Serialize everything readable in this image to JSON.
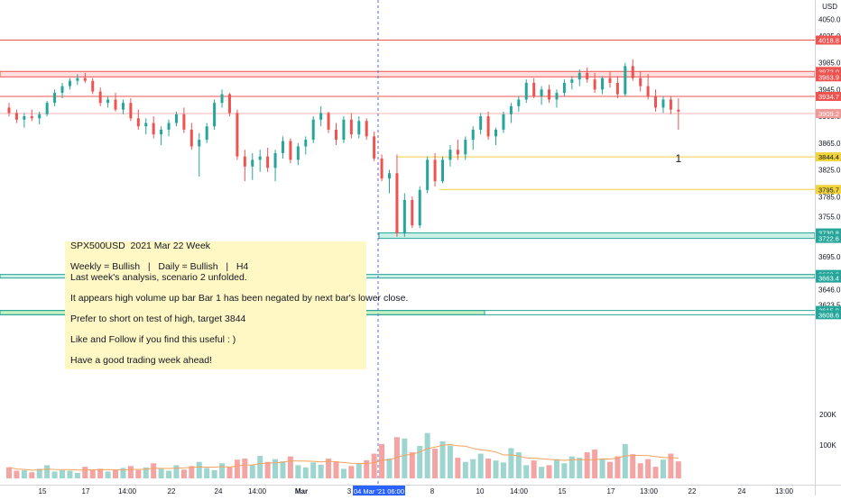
{
  "chart_data": {
    "type": "candlestick",
    "symbol_title": "SPX500USD  2021 Mar 22 Week",
    "currency_label": "USD",
    "colors": {
      "up": "#26a69a",
      "down": "#ef5350",
      "vol_up": "#9ed6cf",
      "vol_down": "#f4a5a3",
      "resistance": "#ef5350",
      "fib": "#f0d43a",
      "support": "#26a69a",
      "ma": "#f5a25d"
    },
    "y_ticks": [
      "4050.0",
      "4025.0",
      "3985.0",
      "3945.0",
      "3905.0",
      "3865.0",
      "3825.0",
      "3785.0",
      "3755.0",
      "3725.0",
      "3695.0",
      "3646.0",
      "3623.5"
    ],
    "x_ticks": [
      "15",
      "17",
      "14:00",
      "22",
      "24",
      "14:00",
      "Mar",
      "3",
      "8",
      "10",
      "14:00",
      "15",
      "17",
      "13:00",
      "22",
      "24",
      "13:00"
    ],
    "cursor_label": "04 Mar '21    06:00",
    "volume_ticks": [
      "200K",
      "100K"
    ],
    "price_levels": [
      {
        "label": "4018.8",
        "kind": "resistance"
      },
      {
        "label": "3972.0",
        "kind": "resistance"
      },
      {
        "label": "3963.9",
        "kind": "resistance"
      },
      {
        "label": "3934.7",
        "kind": "resistance"
      },
      {
        "label": "3909.2",
        "kind": "last"
      },
      {
        "label": "3844.4",
        "kind": "fib"
      },
      {
        "label": "3795.7",
        "kind": "fib"
      },
      {
        "label": "3730.8",
        "kind": "support"
      },
      {
        "label": "3722.6",
        "kind": "support"
      },
      {
        "label": "3668.8",
        "kind": "support"
      },
      {
        "label": "3663.4",
        "kind": "support"
      },
      {
        "label": "3615.0",
        "kind": "support"
      },
      {
        "label": "3608.6",
        "kind": "support"
      }
    ],
    "bar_annotation": "1",
    "candles": [
      [
        3918,
        3925,
        3905,
        3910
      ],
      [
        3910,
        3915,
        3895,
        3900
      ],
      [
        3900,
        3910,
        3888,
        3905
      ],
      [
        3905,
        3915,
        3898,
        3902
      ],
      [
        3902,
        3912,
        3893,
        3908
      ],
      [
        3908,
        3928,
        3905,
        3925
      ],
      [
        3925,
        3945,
        3920,
        3940
      ],
      [
        3940,
        3955,
        3932,
        3950
      ],
      [
        3950,
        3962,
        3945,
        3958
      ],
      [
        3958,
        3968,
        3952,
        3962
      ],
      [
        3962,
        3970,
        3955,
        3958
      ],
      [
        3958,
        3962,
        3938,
        3942
      ],
      [
        3942,
        3948,
        3920,
        3925
      ],
      [
        3925,
        3935,
        3918,
        3930
      ],
      [
        3930,
        3940,
        3912,
        3915
      ],
      [
        3915,
        3930,
        3908,
        3925
      ],
      [
        3925,
        3932,
        3898,
        3902
      ],
      [
        3902,
        3915,
        3885,
        3890
      ],
      [
        3890,
        3902,
        3878,
        3895
      ],
      [
        3895,
        3905,
        3872,
        3878
      ],
      [
        3878,
        3890,
        3862,
        3885
      ],
      [
        3885,
        3900,
        3875,
        3895
      ],
      [
        3895,
        3912,
        3890,
        3908
      ],
      [
        3908,
        3918,
        3880,
        3885
      ],
      [
        3885,
        3895,
        3855,
        3860
      ],
      [
        3860,
        3880,
        3815,
        3870
      ],
      [
        3870,
        3895,
        3865,
        3890
      ],
      [
        3890,
        3930,
        3885,
        3925
      ],
      [
        3925,
        3945,
        3918,
        3938
      ],
      [
        3938,
        3940,
        3905,
        3910
      ],
      [
        3910,
        3915,
        3840,
        3845
      ],
      [
        3845,
        3855,
        3808,
        3830
      ],
      [
        3830,
        3850,
        3810,
        3840
      ],
      [
        3840,
        3855,
        3822,
        3845
      ],
      [
        3845,
        3858,
        3822,
        3828
      ],
      [
        3828,
        3855,
        3808,
        3850
      ],
      [
        3850,
        3875,
        3842,
        3868
      ],
      [
        3868,
        3872,
        3835,
        3840
      ],
      [
        3840,
        3865,
        3832,
        3860
      ],
      [
        3860,
        3875,
        3848,
        3870
      ],
      [
        3870,
        3905,
        3865,
        3900
      ],
      [
        3900,
        3920,
        3890,
        3910
      ],
      [
        3910,
        3912,
        3880,
        3885
      ],
      [
        3885,
        3895,
        3862,
        3870
      ],
      [
        3870,
        3905,
        3865,
        3900
      ],
      [
        3900,
        3910,
        3872,
        3878
      ],
      [
        3878,
        3905,
        3872,
        3898
      ],
      [
        3898,
        3902,
        3870,
        3875
      ],
      [
        3875,
        3882,
        3838,
        3842
      ],
      [
        3842,
        3848,
        3808,
        3812
      ],
      [
        3812,
        3825,
        3790,
        3820
      ],
      [
        3820,
        3848,
        3725,
        3730
      ],
      [
        3730,
        3790,
        3725,
        3780
      ],
      [
        3780,
        3785,
        3738,
        3742
      ],
      [
        3742,
        3800,
        3738,
        3795
      ],
      [
        3795,
        3845,
        3790,
        3840
      ],
      [
        3840,
        3850,
        3800,
        3808
      ],
      [
        3808,
        3845,
        3805,
        3840
      ],
      [
        3840,
        3862,
        3830,
        3855
      ],
      [
        3855,
        3870,
        3840,
        3848
      ],
      [
        3848,
        3875,
        3840,
        3870
      ],
      [
        3870,
        3890,
        3855,
        3885
      ],
      [
        3885,
        3910,
        3878,
        3905
      ],
      [
        3905,
        3912,
        3870,
        3875
      ],
      [
        3875,
        3888,
        3862,
        3885
      ],
      [
        3885,
        3912,
        3880,
        3908
      ],
      [
        3908,
        3925,
        3895,
        3920
      ],
      [
        3920,
        3935,
        3912,
        3930
      ],
      [
        3930,
        3960,
        3925,
        3955
      ],
      [
        3955,
        3962,
        3932,
        3935
      ],
      [
        3935,
        3950,
        3922,
        3945
      ],
      [
        3945,
        3952,
        3925,
        3930
      ],
      [
        3930,
        3945,
        3918,
        3940
      ],
      [
        3940,
        3960,
        3935,
        3955
      ],
      [
        3955,
        3965,
        3945,
        3960
      ],
      [
        3960,
        3975,
        3950,
        3970
      ],
      [
        3970,
        3978,
        3955,
        3960
      ],
      [
        3960,
        3970,
        3940,
        3945
      ],
      [
        3945,
        3965,
        3938,
        3962
      ],
      [
        3962,
        3972,
        3948,
        3955
      ],
      [
        3955,
        3965,
        3932,
        3938
      ],
      [
        3938,
        3985,
        3935,
        3980
      ],
      [
        3980,
        3990,
        3958,
        3962
      ],
      [
        3962,
        3972,
        3942,
        3950
      ],
      [
        3950,
        3968,
        3930,
        3935
      ],
      [
        3935,
        3945,
        3912,
        3918
      ],
      [
        3918,
        3935,
        3910,
        3930
      ],
      [
        3930,
        3935,
        3908,
        3915
      ],
      [
        3915,
        3932,
        3885,
        3912
      ]
    ],
    "volumes": [
      40,
      28,
      30,
      22,
      35,
      48,
      25,
      30,
      28,
      20,
      42,
      30,
      35,
      25,
      30,
      38,
      45,
      30,
      40,
      55,
      35,
      28,
      48,
      32,
      45,
      60,
      38,
      30,
      55,
      42,
      68,
      72,
      48,
      82,
      60,
      70,
      62,
      80,
      48,
      40,
      58,
      50,
      72,
      62,
      35,
      45,
      55,
      66,
      90,
      125,
      72,
      150,
      145,
      95,
      118,
      165,
      108,
      135,
      120,
      75,
      60,
      70,
      90,
      72,
      65,
      58,
      110,
      95,
      48,
      65,
      42,
      48,
      70,
      55,
      80,
      75,
      95,
      105,
      72,
      60,
      80,
      125,
      88,
      55,
      70,
      42,
      68,
      90,
      62
    ]
  },
  "note": {
    "lines": [
      "SPX500USD  2021 Mar 22 Week",
      "",
      "Weekly = Bullish   |   Daily = Bullish   |   H4",
      "Last week's analysis, scenario 2 unfolded.",
      "",
      "It appears high volume up bar Bar 1 has been negated by next bar's lower close.",
      "",
      "Prefer to short on test of high, target 3844",
      "",
      "Like and Follow if you find this useful : )",
      "",
      "Have a good trading week ahead!"
    ]
  }
}
